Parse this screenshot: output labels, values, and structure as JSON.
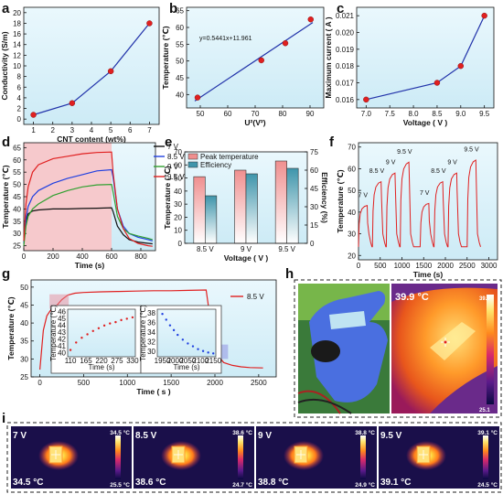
{
  "panels": {
    "a": "a",
    "b": "b",
    "c": "c",
    "d": "d",
    "e": "e",
    "f": "f",
    "g": "g",
    "h": "h",
    "i": "i"
  },
  "chart_data": [
    {
      "id": "a",
      "type": "line",
      "xlabel": "CNT content (wt%)",
      "ylabel": "Conductivity (S/m)",
      "x": [
        1,
        3,
        5,
        7
      ],
      "values": [
        0.8,
        3.0,
        9.0,
        18.0
      ],
      "xlim": [
        0.5,
        7.5
      ],
      "ylim": [
        -1,
        21
      ],
      "xticks": [
        1,
        2,
        3,
        4,
        5,
        6,
        7
      ],
      "yticks": [
        0,
        2,
        4,
        6,
        8,
        10,
        12,
        14,
        16,
        18,
        20
      ],
      "line_color": "#2233aa",
      "marker_color": "#e02020"
    },
    {
      "id": "b",
      "type": "scatter",
      "xlabel": "U²(V²)",
      "ylabel": "Temperature (℃)",
      "x": [
        49,
        72.25,
        81,
        90.25
      ],
      "values": [
        39.1,
        50.2,
        55.3,
        62.4
      ],
      "fit": {
        "slope": 0.5441,
        "intercept": 11.961
      },
      "equation": "y=0.5441x+11.961",
      "xlim": [
        45,
        95
      ],
      "ylim": [
        36,
        66
      ],
      "xticks": [
        50,
        60,
        70,
        80,
        90
      ],
      "yticks": [
        40,
        45,
        50,
        55,
        60,
        65
      ],
      "line_color": "#2233aa",
      "marker_color": "#e02020"
    },
    {
      "id": "c",
      "type": "line",
      "xlabel": "Voltage ( V )",
      "ylabel": "Maximum current ( A )",
      "x": [
        7,
        8.5,
        9,
        9.5
      ],
      "values": [
        0.016,
        0.017,
        0.018,
        0.021
      ],
      "xlim": [
        6.8,
        9.7
      ],
      "ylim": [
        0.0155,
        0.0215
      ],
      "xticks": [
        7.0,
        7.5,
        8.0,
        8.5,
        9.0,
        9.5
      ],
      "yticks": [
        0.016,
        0.017,
        0.018,
        0.019,
        0.02,
        0.021
      ],
      "line_color": "#2233aa",
      "marker_color": "#e02020"
    },
    {
      "id": "d",
      "type": "line",
      "xlabel": "Time (s)",
      "ylabel": "Temperature (℃)",
      "xlim": [
        0,
        900
      ],
      "ylim": [
        23,
        67
      ],
      "xticks": [
        0,
        200,
        400,
        600,
        800
      ],
      "yticks": [
        25,
        30,
        35,
        40,
        45,
        50,
        55,
        60,
        65
      ],
      "shaded_region": [
        0,
        600
      ],
      "shade_color": "#f6c9cc",
      "series": [
        {
          "name": "7 V",
          "color": "#111111",
          "x": [
            0,
            15,
            30,
            60,
            100,
            200,
            300,
            400,
            500,
            600,
            610,
            640,
            680,
            720,
            780,
            850,
            880
          ],
          "values": [
            27,
            35,
            38,
            39.2,
            39.6,
            40,
            40,
            40.2,
            40.3,
            40.5,
            39,
            33,
            29.5,
            27.5,
            26.5,
            26,
            25.8
          ]
        },
        {
          "name": "8.5 V",
          "color": "#2040e0",
          "x": [
            0,
            15,
            30,
            60,
            100,
            200,
            300,
            400,
            500,
            600,
            610,
            640,
            680,
            720,
            780,
            850,
            880
          ],
          "values": [
            26,
            36,
            41,
            45,
            47.5,
            50.5,
            52.5,
            54,
            55.5,
            56,
            53,
            40,
            33,
            30,
            28.5,
            27.5,
            27
          ]
        },
        {
          "name": "9 V",
          "color": "#30a030",
          "x": [
            0,
            15,
            30,
            60,
            100,
            200,
            300,
            400,
            500,
            600,
            610,
            640,
            680,
            720,
            780,
            850,
            880
          ],
          "values": [
            25,
            33,
            37,
            40,
            42,
            45.5,
            47.5,
            49,
            49.8,
            50,
            47,
            37,
            32,
            30,
            29,
            28,
            27.5
          ]
        },
        {
          "name": "9.5 V",
          "color": "#e02020",
          "x": [
            0,
            15,
            30,
            60,
            100,
            200,
            300,
            400,
            500,
            600,
            610,
            640,
            680,
            720,
            780,
            850,
            880
          ],
          "values": [
            27,
            42,
            49,
            55,
            58,
            60.5,
            61.5,
            62.5,
            63,
            63.2,
            55,
            40,
            32,
            28,
            26,
            25,
            24.8
          ]
        }
      ]
    },
    {
      "id": "e",
      "type": "bar",
      "xlabel": "Voltage ( V )",
      "ylabel": "Temperature (℃)",
      "y2label": "Efficiency (%)",
      "categories": [
        "8.5 V",
        "9 V",
        "9.5 V"
      ],
      "series": [
        {
          "name": "Peak temperature",
          "values": [
            51,
            56,
            63
          ],
          "color_top": "#f3a6a6",
          "color_bottom": "#ffffff"
        },
        {
          "name": "Efficiency",
          "values": [
            39,
            57,
            61.5
          ],
          "axis": "right",
          "color_top": "#5aa6b8",
          "color_bottom": "#ffffff"
        }
      ],
      "ylim": [
        0,
        70
      ],
      "yticks": [
        0,
        10,
        20,
        30,
        40,
        50,
        60,
        70
      ],
      "y2lim": [
        0,
        75
      ],
      "y2ticks": [
        0,
        15,
        30,
        45,
        60,
        75
      ]
    },
    {
      "id": "f",
      "type": "line",
      "xlabel": "Time (s)",
      "ylabel": "Temperature (℃)",
      "xlim": [
        0,
        3200
      ],
      "ylim": [
        18,
        72
      ],
      "xticks": [
        0,
        500,
        1000,
        1500,
        2000,
        2500,
        3000
      ],
      "yticks": [
        20,
        30,
        40,
        50,
        60,
        70
      ],
      "line_color": "#e02020",
      "cycles": [
        {
          "label": "7 V",
          "start": 0,
          "peak": 43
        },
        {
          "label": "8.5 V",
          "start": 320,
          "peak": 54
        },
        {
          "label": "9 V",
          "start": 640,
          "peak": 58
        },
        {
          "label": "9.5 V",
          "start": 960,
          "peak": 63
        },
        {
          "label": "7 V",
          "start": 1420,
          "peak": 44
        },
        {
          "label": "8.5 V",
          "start": 1740,
          "peak": 54
        },
        {
          "label": "9 V",
          "start": 2060,
          "peak": 58
        },
        {
          "label": "9.5 V",
          "start": 2500,
          "peak": 64
        }
      ],
      "base": 24
    },
    {
      "id": "g",
      "type": "line",
      "xlabel": "Time ( s )",
      "ylabel": "Temperature (℃)",
      "xlim": [
        -100,
        2700
      ],
      "ylim": [
        25,
        52
      ],
      "xticks": [
        0,
        500,
        1000,
        1500,
        2000,
        2500
      ],
      "yticks": [
        25,
        30,
        35,
        40,
        45,
        50
      ],
      "series": [
        {
          "name": "8.5 V",
          "color": "#e02020",
          "x": [
            0,
            40,
            80,
            120,
            180,
            250,
            320,
            400,
            500,
            700,
            900,
            1100,
            1300,
            1500,
            1700,
            1900,
            1930,
            1960,
            2000,
            2050,
            2100,
            2200,
            2300,
            2400,
            2550
          ],
          "values": [
            27,
            38,
            42,
            43.5,
            44.5,
            46.5,
            47.8,
            48.3,
            48.5,
            48.7,
            48.8,
            48.9,
            49,
            49,
            49.1,
            49.2,
            44,
            38,
            33,
            30.5,
            29,
            28.2,
            27.8,
            27.6,
            27.5
          ]
        }
      ],
      "insets": [
        {
          "xlabel": "Time (s)",
          "ylabel": "Temperature (℃)",
          "xticks": [
            110,
            165,
            220,
            275,
            330
          ],
          "yticks": [
            40,
            41,
            42,
            43,
            44,
            45,
            46
          ],
          "xlim": [
            100,
            340
          ],
          "ylim": [
            39.5,
            46.5
          ],
          "x": [
            110,
            130,
            150,
            170,
            190,
            210,
            230,
            250,
            270,
            290,
            310,
            330
          ],
          "values": [
            40.5,
            41.6,
            42.3,
            42.8,
            43.3,
            43.7,
            44.1,
            44.4,
            44.6,
            44.9,
            45.1,
            45.3
          ],
          "color": "#e02020"
        },
        {
          "xlabel": "Time (s)",
          "ylabel": "Temperature (℃)",
          "xticks": [
            1950,
            2000,
            2050,
            2100,
            2150
          ],
          "yticks": [
            30,
            32,
            34,
            36,
            38
          ],
          "xlim": [
            1930,
            2160
          ],
          "ylim": [
            29,
            39
          ],
          "x": [
            1950,
            1965,
            1980,
            1995,
            2010,
            2030,
            2050,
            2070,
            2090,
            2110,
            2130,
            2150
          ],
          "values": [
            38,
            36.8,
            35.6,
            34.6,
            33.6,
            32.6,
            31.8,
            31.2,
            30.6,
            30.2,
            29.9,
            29.7
          ],
          "color": "#2040e0"
        }
      ]
    }
  ],
  "photos": {
    "h": {
      "temp": "39.9 °C",
      "scale_max": "39.9",
      "scale_min": "25.1"
    },
    "i": [
      {
        "voltage": "7 V",
        "temp": "34.5 °C",
        "scale_max": "34.5 °C",
        "scale_min": "25.5 °C"
      },
      {
        "voltage": "8.5 V",
        "temp": "38.6 °C",
        "scale_max": "38.6 °C",
        "scale_min": "24.7 °C"
      },
      {
        "voltage": "9 V",
        "temp": "38.8 °C",
        "scale_max": "38.8 °C",
        "scale_min": "24.9 °C"
      },
      {
        "voltage": "9.5 V",
        "temp": "39.1 °C",
        "scale_max": "39.1 °C",
        "scale_min": "24.5 °C"
      }
    ]
  },
  "colors": {
    "panel_bg": "#d8f1fa",
    "fit_line": "#2233aa",
    "marker": "#e02020"
  }
}
